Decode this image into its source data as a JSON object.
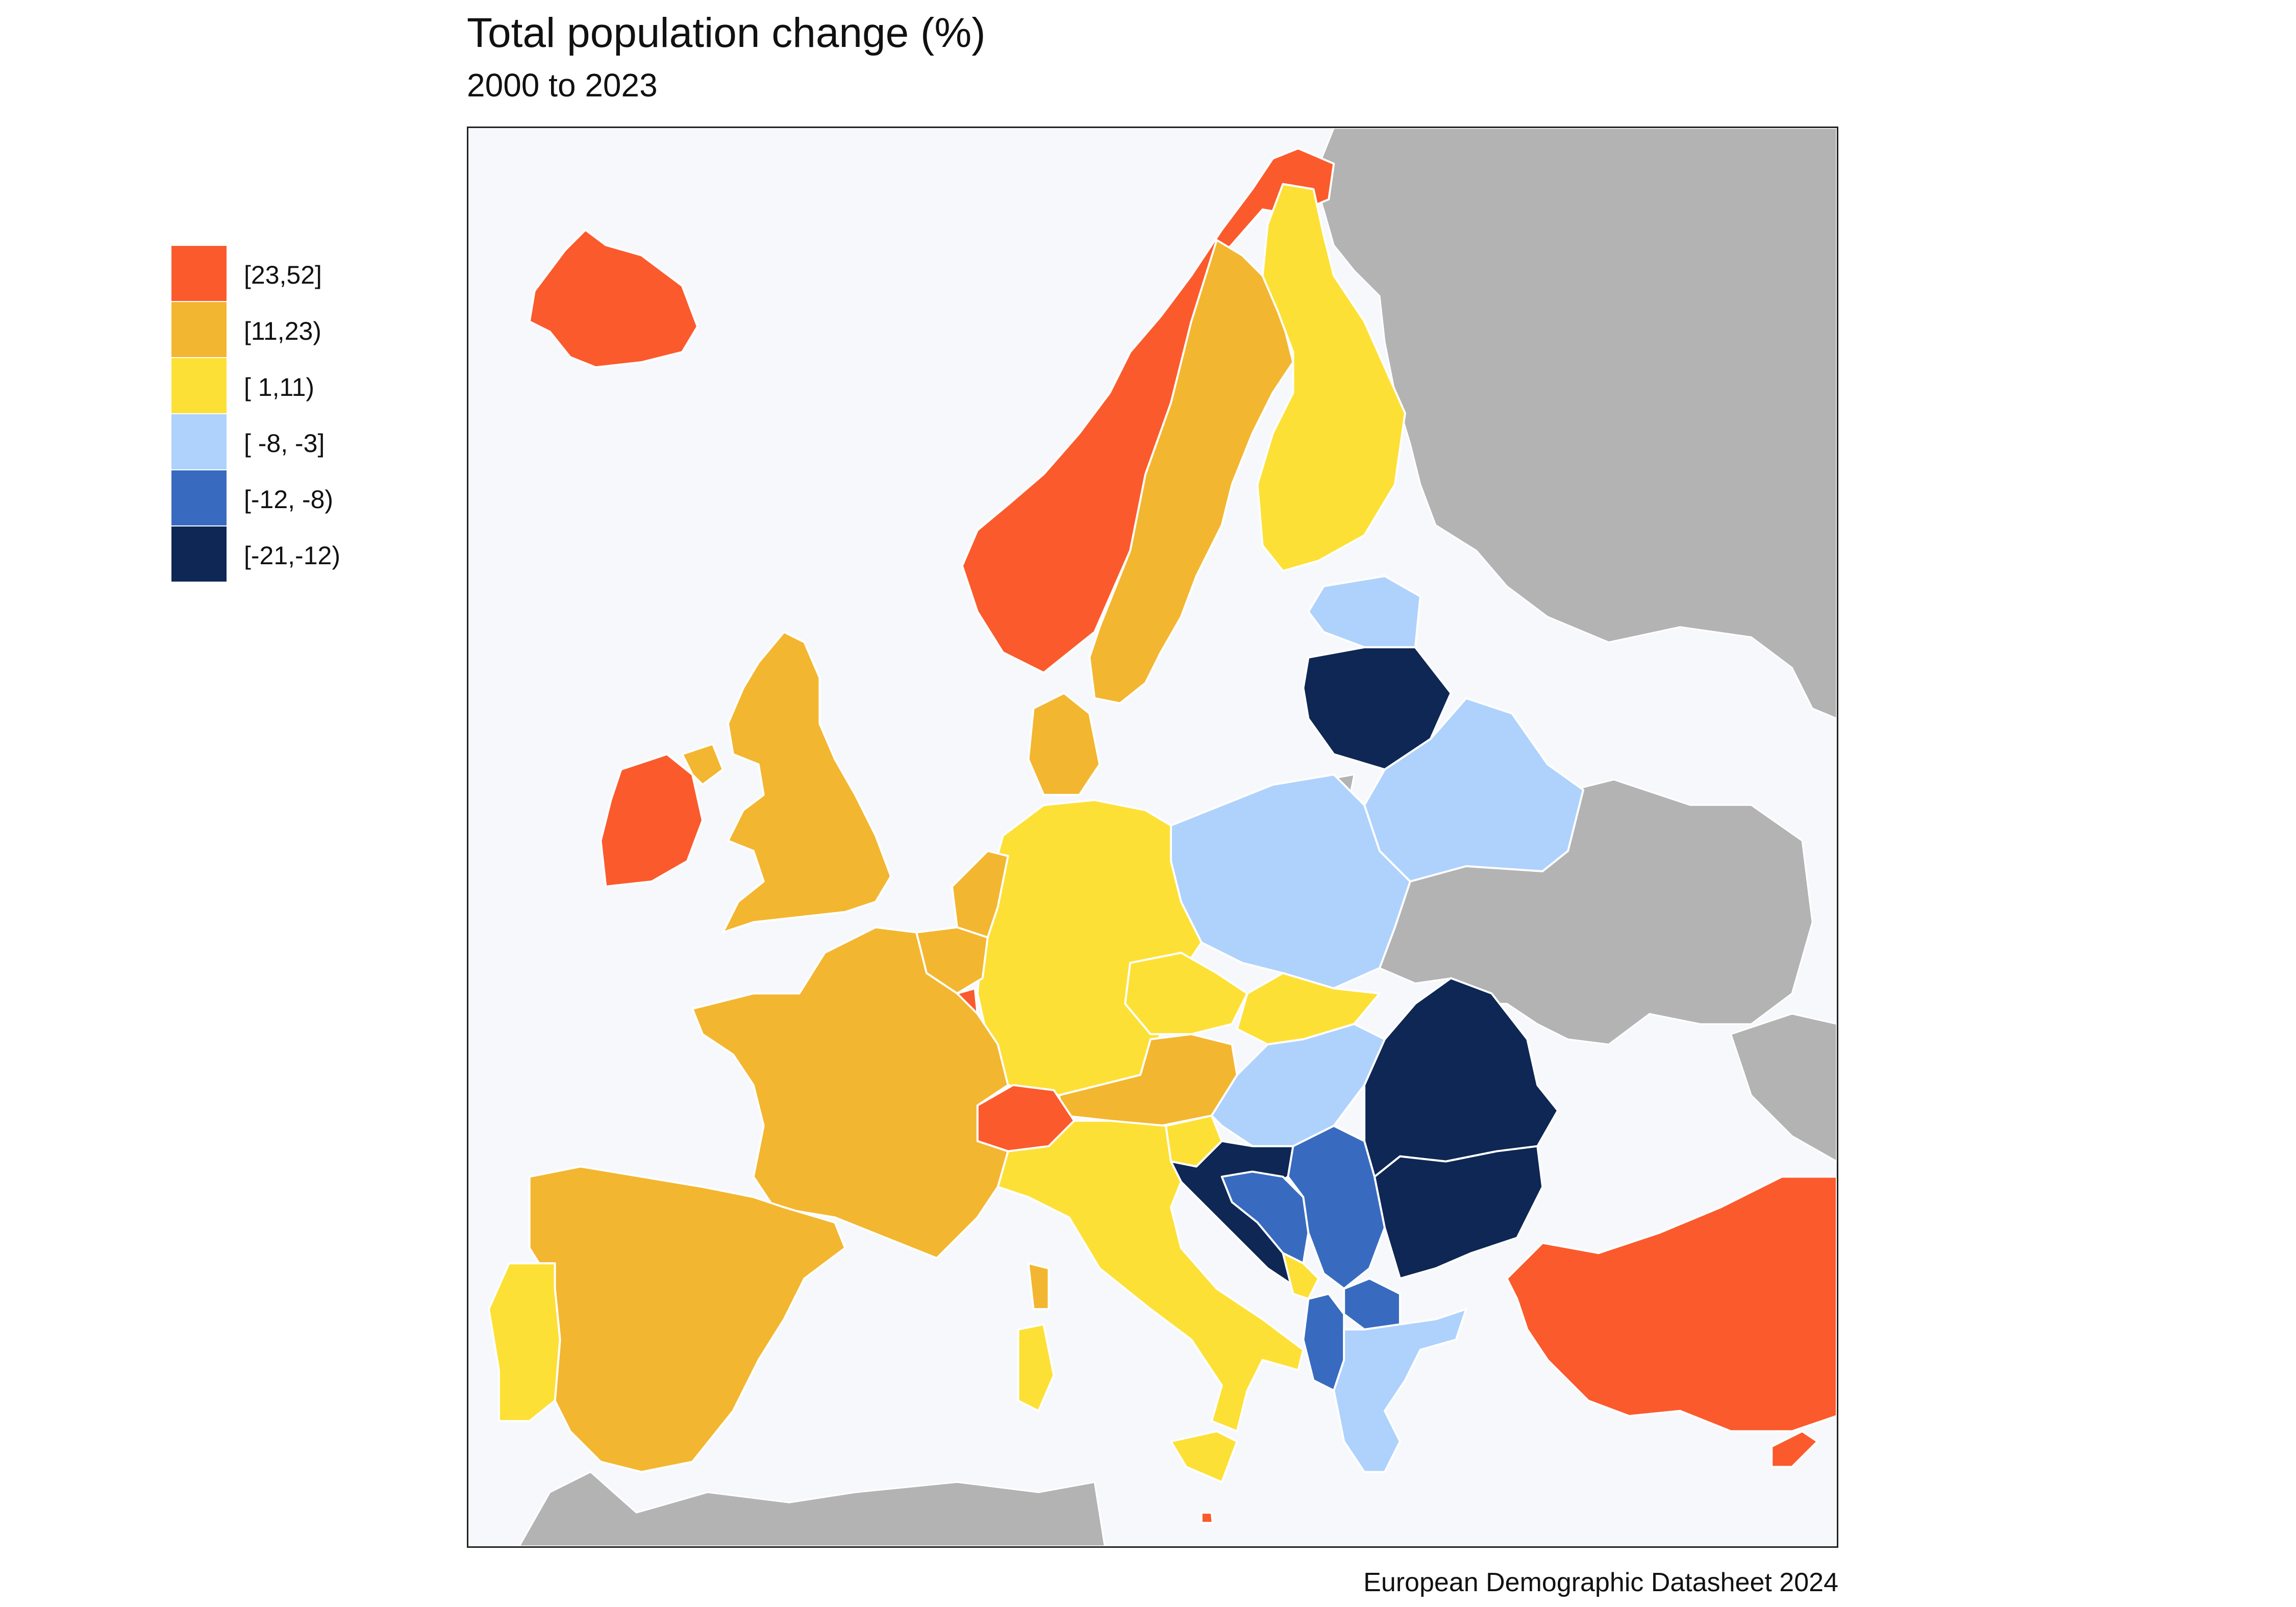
{
  "title": "Total population change (%)",
  "subtitle": "2000 to 2023",
  "caption": "European Demographic Datasheet 2024",
  "map": {
    "sea_color": "#f7f8fc",
    "non_data_color": "#b3b3b3"
  },
  "legend": {
    "items": [
      {
        "label": "[23,52]",
        "color": "#fb5a2d"
      },
      {
        "label": "[11,23)",
        "color": "#f3b630"
      },
      {
        "label": "[ 1,11)",
        "color": "#fde036"
      },
      {
        "label": "[ -8, -3]",
        "color": "#aed2fc"
      },
      {
        "label": "[-12, -8)",
        "color": "#386bbf"
      },
      {
        "label": "[-21,-12)",
        "color": "#0e2754"
      }
    ]
  },
  "regions": [
    {
      "name": "Iceland",
      "class": 0
    },
    {
      "name": "Norway",
      "class": 0
    },
    {
      "name": "Ireland",
      "class": 0
    },
    {
      "name": "Switzerland",
      "class": 0
    },
    {
      "name": "Luxembourg",
      "class": 0
    },
    {
      "name": "Turkey",
      "class": 0
    },
    {
      "name": "Cyprus",
      "class": 0
    },
    {
      "name": "Malta",
      "class": 0
    },
    {
      "name": "Sweden",
      "class": 1
    },
    {
      "name": "United Kingdom",
      "class": 1
    },
    {
      "name": "France",
      "class": 1
    },
    {
      "name": "Spain",
      "class": 1
    },
    {
      "name": "Belgium",
      "class": 1
    },
    {
      "name": "Netherlands",
      "class": 1
    },
    {
      "name": "Denmark",
      "class": 1
    },
    {
      "name": "Austria",
      "class": 1
    },
    {
      "name": "Finland",
      "class": 2
    },
    {
      "name": "Germany",
      "class": 2
    },
    {
      "name": "Portugal",
      "class": 2
    },
    {
      "name": "Italy",
      "class": 2
    },
    {
      "name": "Czechia",
      "class": 2
    },
    {
      "name": "Slovakia",
      "class": 2
    },
    {
      "name": "Slovenia",
      "class": 2
    },
    {
      "name": "Montenegro",
      "class": 2
    },
    {
      "name": "Estonia",
      "class": 3
    },
    {
      "name": "Poland",
      "class": 3
    },
    {
      "name": "Belarus",
      "class": 3
    },
    {
      "name": "Hungary",
      "class": 3
    },
    {
      "name": "Greece",
      "class": 3
    },
    {
      "name": "Bosnia and Herzegovina",
      "class": 4
    },
    {
      "name": "Serbia",
      "class": 4
    },
    {
      "name": "North Macedonia",
      "class": 4
    },
    {
      "name": "Albania",
      "class": 4
    },
    {
      "name": "Latvia",
      "class": 5
    },
    {
      "name": "Lithuania",
      "class": 5
    },
    {
      "name": "Romania",
      "class": 5
    },
    {
      "name": "Bulgaria",
      "class": 5
    },
    {
      "name": "Croatia",
      "class": 5
    }
  ]
}
